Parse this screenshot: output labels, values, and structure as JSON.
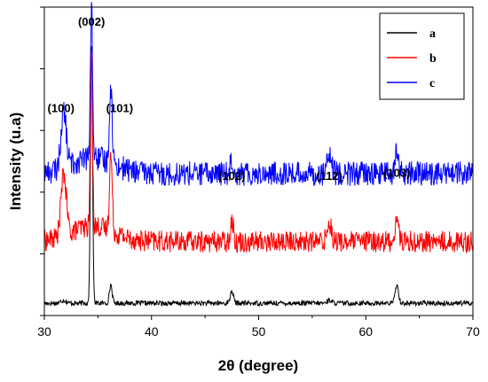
{
  "chart_data": {
    "type": "line",
    "title": "",
    "xlabel": "2θ (degree)",
    "ylabel": "Intensity (u.a)",
    "xlim": [
      30,
      70
    ],
    "x_ticks": [
      "30",
      "40",
      "50",
      "60",
      "70"
    ],
    "grid": false,
    "legend_position": "top-right",
    "peaks": [
      {
        "label": "(100)",
        "x": 31.8
      },
      {
        "label": "(002)",
        "x": 34.4
      },
      {
        "label": "(101)",
        "x": 36.2
      },
      {
        "label": "(102)",
        "x": 47.5
      },
      {
        "label": "(112)",
        "x": 56.6
      },
      {
        "label": "(103)",
        "x": 62.9
      }
    ],
    "series": [
      {
        "name": "a",
        "color": "#000000",
        "baseline": 0.04,
        "noise": 0.008,
        "heights": {
          "31.8": 0.01,
          "34.4": 0.84,
          "36.2": 0.06,
          "47.5": 0.04,
          "56.6": 0.01,
          "62.9": 0.06
        }
      },
      {
        "name": "b",
        "color": "#ff0000",
        "baseline": 0.24,
        "noise": 0.035,
        "heights": {
          "31.8": 0.2,
          "34.4": 0.58,
          "36.2": 0.25,
          "47.5": 0.07,
          "56.6": 0.06,
          "62.9": 0.08
        }
      },
      {
        "name": "c",
        "color": "#0000ff",
        "baseline": 0.46,
        "noise": 0.04,
        "heights": {
          "31.8": 0.18,
          "34.4": 0.5,
          "36.2": 0.25,
          "47.5": 0.05,
          "56.6": 0.05,
          "62.9": 0.07
        }
      }
    ]
  }
}
